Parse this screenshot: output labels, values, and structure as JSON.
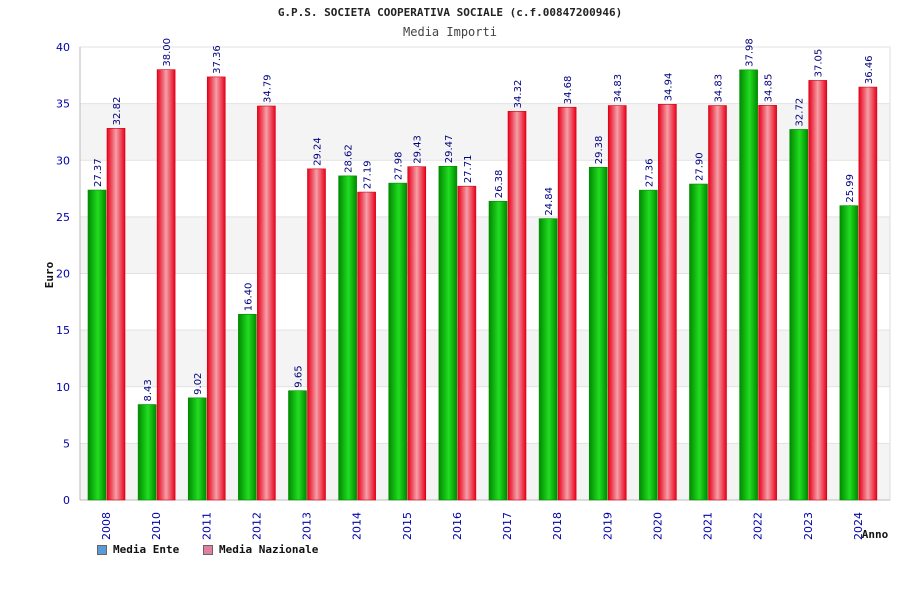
{
  "header": {
    "title": "G.P.S. SOCIETA COOPERATIVA SOCIALE (c.f.00847200946)",
    "subtitle": "Media Importi"
  },
  "legend": {
    "ente_label": "Media Ente",
    "nazionale_label": "Media Nazionale",
    "ente_color": "#5b9bd5",
    "nazionale_color": "#e0809f"
  },
  "colors": {
    "ente_bar": "#12b812",
    "ente_bar_dark": "#008a00",
    "nazionale_bar": "#f0404a",
    "nazionale_bar_dark": "#d40010",
    "axis_label": "#0000aa",
    "value_label": "#000080"
  },
  "chart_data": {
    "type": "bar",
    "title": "Media Importi",
    "xlabel": "Anno",
    "ylabel": "Euro",
    "ylim": [
      0,
      40
    ],
    "yticks": [
      0,
      5,
      10,
      15,
      20,
      25,
      30,
      35,
      40
    ],
    "categories": [
      "2008",
      "2010",
      "2011",
      "2012",
      "2013",
      "2014",
      "2015",
      "2016",
      "2017",
      "2018",
      "2019",
      "2020",
      "2021",
      "2022",
      "2023",
      "2024"
    ],
    "series": [
      {
        "name": "Media Ente",
        "values": [
          27.37,
          8.43,
          9.02,
          16.4,
          9.65,
          28.62,
          27.98,
          29.47,
          26.38,
          24.84,
          29.38,
          27.36,
          27.9,
          37.98,
          32.72,
          25.99
        ],
        "labels": [
          "27.37",
          "8.43",
          "9.02",
          "16.40",
          "9.65",
          "28.62",
          "27.98",
          "29.47",
          "26.38",
          "24.84",
          "29.38",
          "27.36",
          "27.90",
          "37.98",
          "32.72",
          "25.99"
        ]
      },
      {
        "name": "Media Nazionale",
        "values": [
          32.82,
          38.0,
          37.36,
          34.79,
          29.24,
          27.19,
          29.43,
          27.71,
          34.32,
          34.68,
          34.83,
          34.94,
          34.83,
          34.85,
          37.05,
          36.46
        ],
        "labels": [
          "32.82",
          "38.00",
          "37.36",
          "34.79",
          "29.24",
          "27.19",
          "29.43",
          "27.71",
          "34.32",
          "34.68",
          "34.83",
          "34.94",
          "34.83",
          "34.85",
          "37.05",
          "36.46"
        ]
      }
    ]
  }
}
